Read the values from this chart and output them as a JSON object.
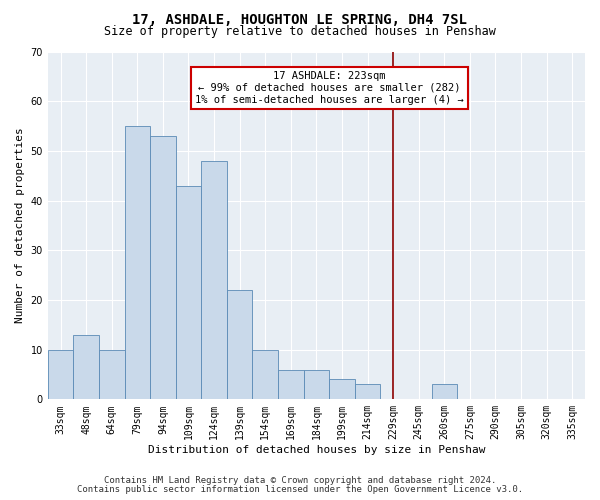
{
  "title": "17, ASHDALE, HOUGHTON LE SPRING, DH4 7SL",
  "subtitle": "Size of property relative to detached houses in Penshaw",
  "xlabel": "Distribution of detached houses by size in Penshaw",
  "ylabel": "Number of detached properties",
  "categories": [
    "33sqm",
    "48sqm",
    "64sqm",
    "79sqm",
    "94sqm",
    "109sqm",
    "124sqm",
    "139sqm",
    "154sqm",
    "169sqm",
    "184sqm",
    "199sqm",
    "214sqm",
    "229sqm",
    "245sqm",
    "260sqm",
    "275sqm",
    "290sqm",
    "305sqm",
    "320sqm",
    "335sqm"
  ],
  "values": [
    10,
    13,
    10,
    55,
    53,
    43,
    48,
    22,
    10,
    6,
    6,
    4,
    3,
    0,
    0,
    3,
    0,
    0,
    0,
    0,
    0
  ],
  "bar_color": "#c9d9ea",
  "bar_edge_color": "#5a8ab5",
  "background_color": "#e8eef4",
  "grid_color": "#ffffff",
  "ylim": [
    0,
    70
  ],
  "yticks": [
    0,
    10,
    20,
    30,
    40,
    50,
    60,
    70
  ],
  "property_line_index": 13,
  "property_line_color": "#8b0000",
  "annotation_text": "17 ASHDALE: 223sqm\n← 99% of detached houses are smaller (282)\n1% of semi-detached houses are larger (4) →",
  "annotation_box_edgecolor": "#cc0000",
  "footnote1": "Contains HM Land Registry data © Crown copyright and database right 2024.",
  "footnote2": "Contains public sector information licensed under the Open Government Licence v3.0.",
  "title_fontsize": 10,
  "subtitle_fontsize": 8.5,
  "ylabel_fontsize": 8,
  "xlabel_fontsize": 8,
  "tick_fontsize": 7,
  "annotation_fontsize": 7.5,
  "footnote_fontsize": 6.5
}
